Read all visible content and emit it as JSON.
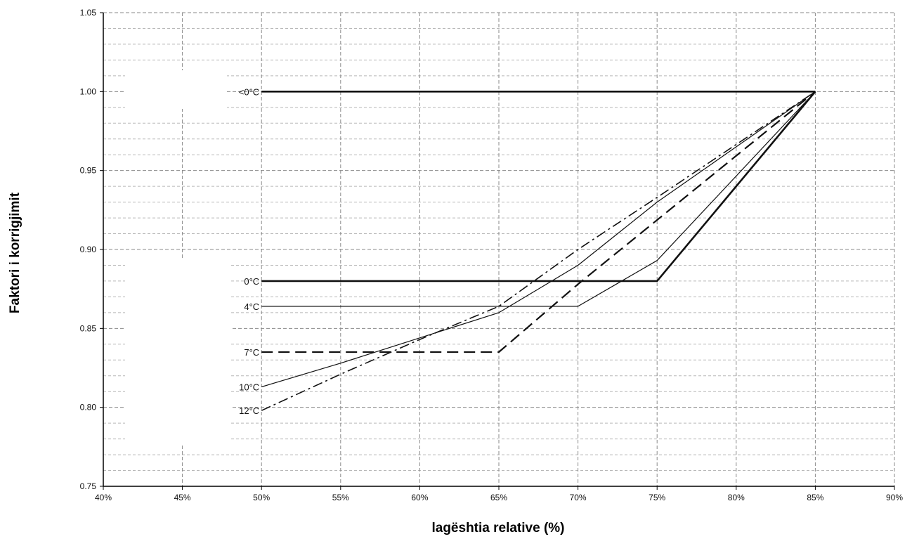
{
  "chart_data": {
    "type": "line",
    "xlabel": "lagështia relative (%)",
    "ylabel": "Faktori i korrigjimit",
    "xlim": [
      40,
      90
    ],
    "ylim": [
      0.75,
      1.05
    ],
    "x_ticks": [
      "40%",
      "45%",
      "50%",
      "55%",
      "60%",
      "65%",
      "70%",
      "75%",
      "80%",
      "85%",
      "90%"
    ],
    "y_ticks": [
      "0.75",
      "0.80",
      "0.85",
      "0.90",
      "0.95",
      "1.00",
      "1.05"
    ],
    "grid": true,
    "series": [
      {
        "name": "<0°C",
        "style": "thick-solid",
        "x": [
          50,
          85
        ],
        "y": [
          1.0,
          1.0
        ]
      },
      {
        "name": "0°C",
        "style": "thick-solid",
        "x": [
          50,
          75,
          85
        ],
        "y": [
          0.88,
          0.88,
          1.0
        ]
      },
      {
        "name": "4°C",
        "style": "thin-solid",
        "x": [
          50,
          70,
          75,
          85
        ],
        "y": [
          0.864,
          0.864,
          0.893,
          1.0
        ]
      },
      {
        "name": "7°C",
        "style": "dashed",
        "x": [
          50,
          65,
          70,
          85
        ],
        "y": [
          0.835,
          0.835,
          0.878,
          1.0
        ]
      },
      {
        "name": "10°C",
        "style": "thin-solid",
        "x": [
          50,
          55,
          60,
          65,
          70,
          75,
          85
        ],
        "y": [
          0.813,
          0.828,
          0.844,
          0.86,
          0.89,
          0.93,
          1.0
        ]
      },
      {
        "name": "12°C",
        "style": "dash-dot",
        "x": [
          50,
          55,
          60,
          65,
          70,
          75,
          85
        ],
        "y": [
          0.798,
          0.821,
          0.843,
          0.864,
          0.9,
          0.933,
          1.0
        ]
      }
    ]
  }
}
